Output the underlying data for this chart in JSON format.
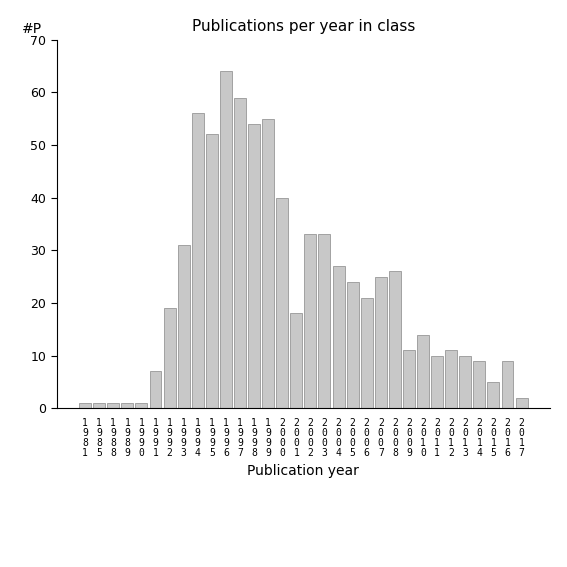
{
  "title": "Publications per year in class",
  "xlabel": "Publication year",
  "ylabel": "#P",
  "ylim": [
    0,
    70
  ],
  "yticks": [
    0,
    10,
    20,
    30,
    40,
    50,
    60,
    70
  ],
  "bar_color": "#c8c8c8",
  "bar_edgecolor": "#888888",
  "years": [
    "1981",
    "1985",
    "1988",
    "1989",
    "1990",
    "1991",
    "1992",
    "1993",
    "1994",
    "1995",
    "1996",
    "1997",
    "1998",
    "1999",
    "2000",
    "2001",
    "2002",
    "2003",
    "2004",
    "2005",
    "2006",
    "2007",
    "2008",
    "2009",
    "2010",
    "2011",
    "2012",
    "2013",
    "2014",
    "2015",
    "2016",
    "2017"
  ],
  "values": [
    1,
    1,
    1,
    1,
    1,
    7,
    19,
    31,
    56,
    52,
    64,
    59,
    54,
    55,
    40,
    18,
    33,
    33,
    27,
    24,
    21,
    25,
    26,
    11,
    14,
    10,
    11,
    10,
    9,
    5,
    9,
    2
  ]
}
